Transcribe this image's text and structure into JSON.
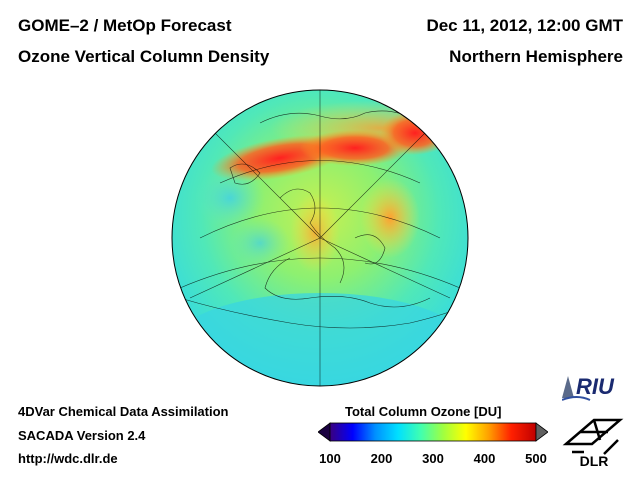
{
  "header": {
    "title": "GOME–2 / MetOp Forecast",
    "subtitle": "Ozone Vertical Column Density",
    "date": "Dec 11, 2012, 12:00 GMT",
    "hemisphere": "Northern Hemisphere"
  },
  "footer": {
    "line1": "4DVar Chemical Data Assimilation",
    "line2": "SACADA Version 2.4",
    "line3": "http://wdc.dlr.de"
  },
  "colorbar": {
    "title": "Total Column Ozone [DU]",
    "min": 100,
    "max": 500,
    "ticks": [
      {
        "value": 100,
        "label": "100"
      },
      {
        "value": 200,
        "label": "200"
      },
      {
        "value": 300,
        "label": "300"
      },
      {
        "value": 400,
        "label": "400"
      },
      {
        "value": 500,
        "label": "500"
      }
    ],
    "colors": [
      "#3a007f",
      "#0000ff",
      "#0090ff",
      "#00e0ff",
      "#40ffb0",
      "#a0ff40",
      "#ffff00",
      "#ffa000",
      "#ff2000",
      "#c00000"
    ]
  },
  "logos": {
    "riu": "RIU",
    "dlr": "DLR"
  }
}
